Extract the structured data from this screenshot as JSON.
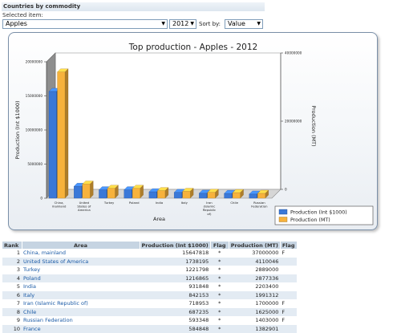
{
  "header": {
    "title": "Countries by commodity",
    "selected_item_label": "Selected item:"
  },
  "controls": {
    "commodity_value": "Apples",
    "year_value": "2012",
    "sort_label": "Sort by:",
    "sort_value": "Value"
  },
  "chart_data": {
    "type": "bar",
    "title": "Top production - Apples - 2012",
    "xlabel": "Area",
    "ylabel": "Production (Int $1000)",
    "y2label": "Production (MT)",
    "categories": [
      "China, mainland",
      "United States of America",
      "Turkey",
      "Poland",
      "India",
      "Italy",
      "Iran (Islamic Republic of)",
      "Chile",
      "Russian Federation"
    ],
    "category_lines": [
      [
        "China,",
        "mainland"
      ],
      [
        "United",
        "States of",
        "America"
      ],
      [
        "Turkey"
      ],
      [
        "Poland"
      ],
      [
        "India"
      ],
      [
        "Italy"
      ],
      [
        "Iran",
        "(Islamic",
        "Republic",
        "of)"
      ],
      [
        "Chile"
      ],
      [
        "Russian",
        "Federation"
      ]
    ],
    "series": [
      {
        "name": "Production (Int $1000)",
        "axis": "left",
        "color": "#3a78d8",
        "values": [
          15647818,
          1738195,
          1221798,
          1216865,
          931848,
          842153,
          718953,
          687235,
          593348
        ]
      },
      {
        "name": "Production (MT)",
        "axis": "right",
        "color": "#f7b23c",
        "values": [
          37000000,
          4110046,
          2889000,
          2877336,
          2203400,
          1991312,
          1700000,
          1625000,
          1403000
        ]
      }
    ],
    "ylim": [
      0,
      20000000
    ],
    "y2lim": [
      0,
      40000000
    ],
    "yticks": [
      0,
      5000000,
      10000000,
      15000000,
      20000000
    ],
    "yticks_labels": [
      "0",
      "5000000",
      "10000000",
      "15000000",
      "20000000"
    ],
    "y2ticks": [
      0,
      20000000,
      40000000
    ],
    "y2ticks_labels": [
      "0",
      "20000000",
      "40000000"
    ],
    "legend_position": "bottom-right"
  },
  "table": {
    "headers": [
      "Rank",
      "Area",
      "Production (Int $1000)",
      "Flag",
      "Production (MT)",
      "Flag"
    ],
    "rows": [
      {
        "rank": "1",
        "area": "China, mainland",
        "prod_int": "15647818",
        "flag1": "*",
        "prod_mt": "37000000",
        "flag2": "F"
      },
      {
        "rank": "2",
        "area": "United States of America",
        "prod_int": "1738195",
        "flag1": "*",
        "prod_mt": "4110046",
        "flag2": ""
      },
      {
        "rank": "3",
        "area": "Turkey",
        "prod_int": "1221798",
        "flag1": "*",
        "prod_mt": "2889000",
        "flag2": ""
      },
      {
        "rank": "4",
        "area": "Poland",
        "prod_int": "1216865",
        "flag1": "*",
        "prod_mt": "2877336",
        "flag2": ""
      },
      {
        "rank": "5",
        "area": "India",
        "prod_int": "931848",
        "flag1": "*",
        "prod_mt": "2203400",
        "flag2": ""
      },
      {
        "rank": "6",
        "area": "Italy",
        "prod_int": "842153",
        "flag1": "*",
        "prod_mt": "1991312",
        "flag2": ""
      },
      {
        "rank": "7",
        "area": "Iran (Islamic Republic of)",
        "prod_int": "718953",
        "flag1": "*",
        "prod_mt": "1700000",
        "flag2": "F"
      },
      {
        "rank": "8",
        "area": "Chile",
        "prod_int": "687235",
        "flag1": "*",
        "prod_mt": "1625000",
        "flag2": "F"
      },
      {
        "rank": "9",
        "area": "Russian Federation",
        "prod_int": "593348",
        "flag1": "*",
        "prod_mt": "1403000",
        "flag2": "F"
      },
      {
        "rank": "10",
        "area": "France",
        "prod_int": "584848",
        "flag1": "*",
        "prod_mt": "1382901",
        "flag2": ""
      }
    ]
  }
}
